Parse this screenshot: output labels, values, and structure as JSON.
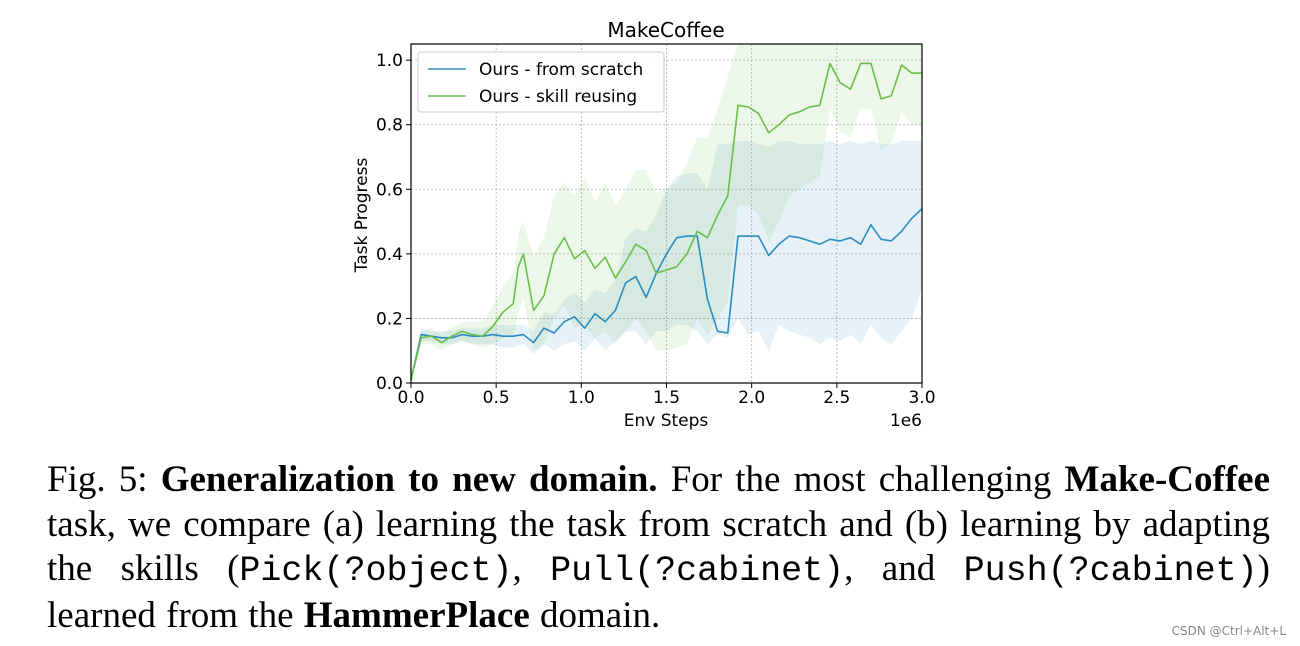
{
  "chart_data": {
    "type": "line",
    "title": "MakeCoffee",
    "xlabel": "Env Steps",
    "ylabel": "Task Progress",
    "x_scale_label": "1e6",
    "xlim": [
      0,
      3.0
    ],
    "ylim": [
      0,
      1.05
    ],
    "xticks": [
      0.0,
      0.5,
      1.0,
      1.5,
      2.0,
      2.5,
      3.0
    ],
    "xtick_labels": [
      "0.0",
      "0.5",
      "1.0",
      "1.5",
      "2.0",
      "2.5",
      "3.0"
    ],
    "yticks": [
      0.0,
      0.2,
      0.4,
      0.6,
      0.8,
      1.0
    ],
    "ytick_labels": [
      "0.0",
      "0.2",
      "0.4",
      "0.6",
      "0.8",
      "1.0"
    ],
    "grid": true,
    "legend_position": "top-left",
    "series": [
      {
        "name": "Ours - from scratch",
        "color": "#2b8cbe",
        "x": [
          0.0,
          0.06,
          0.12,
          0.18,
          0.24,
          0.3,
          0.36,
          0.42,
          0.48,
          0.54,
          0.6,
          0.66,
          0.72,
          0.78,
          0.84,
          0.9,
          0.96,
          1.02,
          1.08,
          1.14,
          1.2,
          1.26,
          1.32,
          1.38,
          1.44,
          1.5,
          1.56,
          1.62,
          1.68,
          1.74,
          1.8,
          1.86,
          1.92,
          1.98,
          2.04,
          2.1,
          2.16,
          2.22,
          2.28,
          2.34,
          2.4,
          2.46,
          2.52,
          2.58,
          2.64,
          2.7,
          2.76,
          2.82,
          2.88,
          2.94,
          3.0
        ],
        "y": [
          0.01,
          0.15,
          0.145,
          0.14,
          0.14,
          0.15,
          0.145,
          0.145,
          0.15,
          0.145,
          0.145,
          0.15,
          0.125,
          0.17,
          0.155,
          0.19,
          0.205,
          0.17,
          0.215,
          0.19,
          0.225,
          0.31,
          0.33,
          0.265,
          0.34,
          0.4,
          0.45,
          0.455,
          0.455,
          0.26,
          0.16,
          0.155,
          0.455,
          0.455,
          0.455,
          0.395,
          0.43,
          0.455,
          0.45,
          0.44,
          0.43,
          0.445,
          0.44,
          0.45,
          0.43,
          0.49,
          0.445,
          0.44,
          0.47,
          0.51,
          0.54
        ],
        "upper": [
          0.02,
          0.17,
          0.16,
          0.16,
          0.16,
          0.17,
          0.17,
          0.17,
          0.18,
          0.18,
          0.18,
          0.18,
          0.16,
          0.22,
          0.21,
          0.26,
          0.28,
          0.25,
          0.29,
          0.28,
          0.32,
          0.45,
          0.48,
          0.47,
          0.52,
          0.6,
          0.64,
          0.65,
          0.65,
          0.6,
          0.74,
          0.74,
          0.75,
          0.75,
          0.74,
          0.73,
          0.75,
          0.75,
          0.74,
          0.74,
          0.74,
          0.75,
          0.74,
          0.75,
          0.74,
          0.75,
          0.74,
          0.74,
          0.75,
          0.75,
          0.75
        ],
        "lower": [
          0.0,
          0.13,
          0.13,
          0.12,
          0.12,
          0.13,
          0.12,
          0.12,
          0.12,
          0.11,
          0.11,
          0.12,
          0.09,
          0.12,
          0.1,
          0.12,
          0.13,
          0.1,
          0.14,
          0.1,
          0.13,
          0.16,
          0.16,
          0.12,
          0.16,
          0.16,
          0.18,
          0.18,
          0.16,
          0.12,
          0.15,
          0.14,
          0.2,
          0.15,
          0.16,
          0.1,
          0.18,
          0.16,
          0.15,
          0.14,
          0.12,
          0.14,
          0.13,
          0.15,
          0.12,
          0.18,
          0.14,
          0.12,
          0.16,
          0.2,
          0.29
        ]
      },
      {
        "name": "Ours - skill reusing",
        "color": "#6abf4b",
        "x": [
          0.0,
          0.06,
          0.12,
          0.18,
          0.24,
          0.3,
          0.36,
          0.42,
          0.48,
          0.54,
          0.6,
          0.63,
          0.66,
          0.72,
          0.78,
          0.84,
          0.9,
          0.96,
          1.02,
          1.08,
          1.14,
          1.2,
          1.26,
          1.32,
          1.38,
          1.44,
          1.5,
          1.56,
          1.62,
          1.68,
          1.74,
          1.8,
          1.86,
          1.92,
          1.98,
          2.04,
          2.1,
          2.16,
          2.22,
          2.28,
          2.34,
          2.4,
          2.46,
          2.52,
          2.58,
          2.64,
          2.7,
          2.76,
          2.82,
          2.88,
          2.94,
          3.0
        ],
        "y": [
          0.01,
          0.14,
          0.145,
          0.125,
          0.145,
          0.16,
          0.15,
          0.145,
          0.175,
          0.22,
          0.245,
          0.36,
          0.4,
          0.225,
          0.27,
          0.4,
          0.45,
          0.385,
          0.41,
          0.355,
          0.39,
          0.325,
          0.375,
          0.43,
          0.41,
          0.34,
          0.35,
          0.36,
          0.4,
          0.47,
          0.45,
          0.52,
          0.58,
          0.86,
          0.855,
          0.835,
          0.775,
          0.8,
          0.83,
          0.84,
          0.855,
          0.86,
          0.99,
          0.93,
          0.91,
          0.99,
          0.99,
          0.88,
          0.89,
          0.985,
          0.96,
          0.96
        ],
        "upper": [
          0.02,
          0.16,
          0.17,
          0.15,
          0.17,
          0.19,
          0.19,
          0.19,
          0.24,
          0.3,
          0.34,
          0.46,
          0.5,
          0.39,
          0.45,
          0.58,
          0.62,
          0.58,
          0.64,
          0.56,
          0.62,
          0.55,
          0.6,
          0.66,
          0.66,
          0.59,
          0.6,
          0.62,
          0.68,
          0.76,
          0.76,
          0.85,
          0.95,
          1.05,
          1.05,
          1.05,
          1.05,
          1.05,
          1.05,
          1.05,
          1.05,
          1.05,
          1.05,
          1.05,
          1.05,
          1.05,
          1.05,
          1.05,
          1.05,
          1.05,
          1.05,
          1.05
        ],
        "lower": [
          0.0,
          0.12,
          0.12,
          0.1,
          0.12,
          0.13,
          0.12,
          0.11,
          0.12,
          0.14,
          0.15,
          0.22,
          0.26,
          0.1,
          0.12,
          0.2,
          0.24,
          0.17,
          0.18,
          0.14,
          0.16,
          0.12,
          0.16,
          0.2,
          0.16,
          0.1,
          0.1,
          0.11,
          0.12,
          0.2,
          0.15,
          0.2,
          0.25,
          0.55,
          0.55,
          0.52,
          0.44,
          0.5,
          0.58,
          0.6,
          0.62,
          0.64,
          0.85,
          0.78,
          0.76,
          0.85,
          0.85,
          0.72,
          0.74,
          0.84,
          0.8,
          0.8
        ]
      }
    ]
  },
  "caption": {
    "fig_label": "Fig. 5: ",
    "bold_title": "Generalization to new domain.",
    "text_1": " For the most challenging ",
    "bold_task": "Make-Coffee",
    "text_2": " task, we compare (a) learning the task from scratch and (b) learning by adapting the skills (",
    "code_1": "Pick(?object)",
    "text_3": ", ",
    "code_2": "Pull(?cabinet)",
    "text_4": ", and ",
    "code_3": "Push(?cabinet)",
    "text_5": ") learned from the ",
    "bold_domain": "HammerPlace",
    "text_6": " domain."
  },
  "watermark": "CSDN @Ctrl+Alt+L"
}
